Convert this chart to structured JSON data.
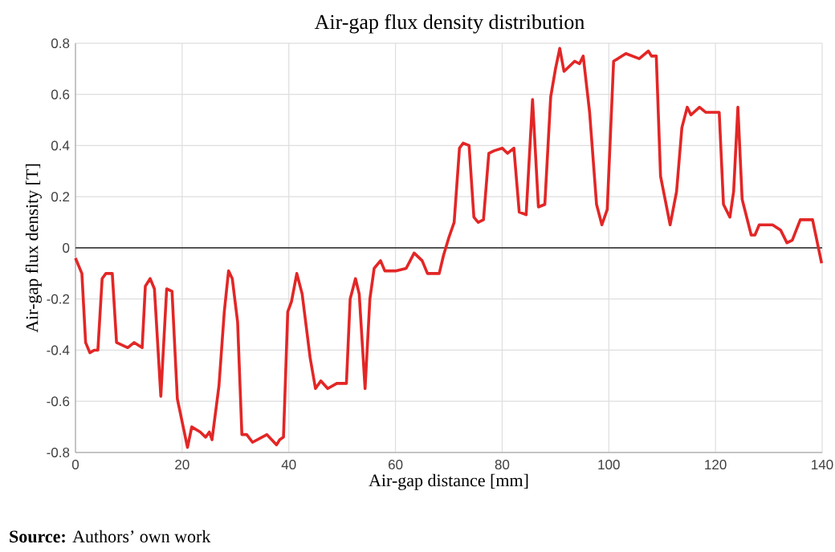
{
  "chart_data": {
    "type": "line",
    "title": "Air-gap flux density distribution",
    "xlabel": "Air-gap distance [mm]",
    "ylabel": "Air-gap flux density [T]",
    "annotations": [
      "**Source:** Authors’ own work"
    ],
    "xlim": [
      0,
      140
    ],
    "ylim": [
      -0.8,
      0.8
    ],
    "xticks": [
      0,
      20,
      40,
      60,
      80,
      100,
      120,
      140
    ],
    "yticks": [
      -0.8,
      -0.6,
      -0.4,
      -0.2,
      0,
      0.2,
      0.4,
      0.6,
      0.8
    ],
    "grid": true,
    "marker": "none",
    "line_style": "solid",
    "ref_lines": [
      {
        "axis": "y",
        "value": 0,
        "color": "#404040"
      }
    ],
    "series": [
      {
        "color": "#e32626",
        "x": [
          0,
          1.2,
          1.9,
          2.7,
          3.5,
          4.2,
          5.0,
          5.7,
          6.9,
          7.7,
          9.8,
          11,
          12.5,
          13.1,
          14,
          14.8,
          16,
          17.1,
          18.1,
          19.1,
          19.8,
          21,
          21.8,
          23.4,
          24.4,
          25.1,
          25.6,
          26.9,
          27.9,
          28.7,
          29.4,
          30.4,
          31.2,
          32.1,
          33.2,
          35.9,
          37.7,
          38.3,
          39,
          39.8,
          40.5,
          41.5,
          42.5,
          44,
          45,
          46,
          47.3,
          49,
          50.8,
          51.5,
          52.5,
          53.2,
          54.3,
          55.2,
          56,
          57.2,
          58,
          60,
          62,
          63.5,
          65,
          66,
          68.2,
          69,
          70,
          71,
          72,
          72.7,
          73.8,
          74.7,
          75.5,
          76.5,
          77.5,
          78.5,
          80,
          81,
          82.2,
          83.2,
          84.5,
          85.7,
          86.8,
          88,
          89.1,
          90,
          90.8,
          91.6,
          93.6,
          94.5,
          95.2,
          96.4,
          97.7,
          98.7,
          99.7,
          100.9,
          101.7,
          103.2,
          105.7,
          107.4,
          108,
          108.9,
          109.7,
          111.5,
          112.7,
          113.7,
          114.7,
          115.4,
          117,
          118.2,
          120.7,
          121.5,
          122.7,
          123.4,
          124.2,
          125,
          126.7,
          127.4,
          128.2,
          130.7,
          132.2,
          133.4,
          134.4,
          135.9,
          138.2,
          138.9,
          139.9
        ],
        "values": [
          -0.04,
          -0.1,
          -0.37,
          -0.41,
          -0.4,
          -0.4,
          -0.12,
          -0.1,
          -0.1,
          -0.37,
          -0.39,
          -0.37,
          -0.39,
          -0.15,
          -0.12,
          -0.16,
          -0.58,
          -0.16,
          -0.17,
          -0.59,
          -0.66,
          -0.78,
          -0.7,
          -0.72,
          -0.74,
          -0.72,
          -0.75,
          -0.54,
          -0.25,
          -0.09,
          -0.12,
          -0.29,
          -0.73,
          -0.73,
          -0.76,
          -0.73,
          -0.77,
          -0.75,
          -0.74,
          -0.25,
          -0.21,
          -0.1,
          -0.18,
          -0.43,
          -0.55,
          -0.52,
          -0.55,
          -0.53,
          -0.53,
          -0.2,
          -0.12,
          -0.18,
          -0.55,
          -0.2,
          -0.08,
          -0.05,
          -0.09,
          -0.09,
          -0.08,
          -0.02,
          -0.05,
          -0.1,
          -0.1,
          -0.03,
          0.04,
          0.1,
          0.39,
          0.41,
          0.4,
          0.12,
          0.1,
          0.11,
          0.37,
          0.38,
          0.39,
          0.37,
          0.39,
          0.14,
          0.13,
          0.58,
          0.16,
          0.17,
          0.59,
          0.7,
          0.78,
          0.69,
          0.73,
          0.72,
          0.75,
          0.53,
          0.17,
          0.09,
          0.15,
          0.73,
          0.74,
          0.76,
          0.74,
          0.77,
          0.75,
          0.75,
          0.28,
          0.09,
          0.22,
          0.47,
          0.55,
          0.52,
          0.55,
          0.53,
          0.53,
          0.17,
          0.12,
          0.22,
          0.55,
          0.19,
          0.05,
          0.05,
          0.09,
          0.09,
          0.07,
          0.02,
          0.03,
          0.11,
          0.11,
          0.04,
          -0.06
        ]
      }
    ]
  }
}
